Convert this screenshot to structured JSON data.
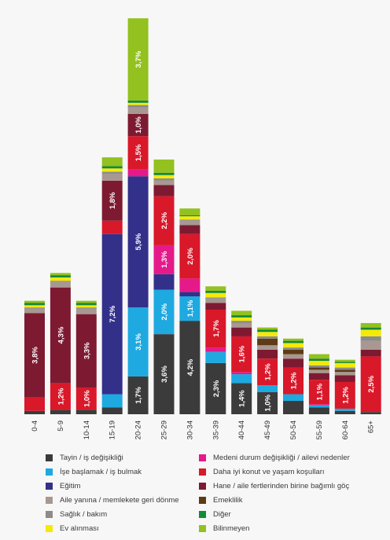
{
  "chart_data": {
    "type": "bar",
    "stacked": true,
    "orientation": "vertical",
    "title": "",
    "xlabel": "",
    "ylabel": "",
    "grid": false,
    "legend_position": "bottom",
    "categories": [
      "0-4",
      "5-9",
      "10-14",
      "15-19",
      "20-24",
      "25-29",
      "30-34",
      "35-39",
      "40-44",
      "45-49",
      "50-54",
      "55-59",
      "60-64",
      "65+"
    ],
    "series": [
      {
        "name": "Tayin / iş değişikliği",
        "color": "#3b3b3b",
        "values": [
          0.15,
          0.2,
          0.2,
          0.3,
          1.7,
          3.6,
          4.2,
          2.3,
          1.4,
          1.0,
          0.6,
          0.3,
          0.15,
          0.1
        ]
      },
      {
        "name": "İşe başlamak / iş bulmak",
        "color": "#1ea9e1",
        "values": [
          0,
          0,
          0,
          0.6,
          3.1,
          2.0,
          1.1,
          0.5,
          0.4,
          0.3,
          0.3,
          0.1,
          0.1,
          0
        ]
      },
      {
        "name": "Eğitim",
        "color": "#33308a",
        "values": [
          0,
          0,
          0,
          7.2,
          5.9,
          0.7,
          0.2,
          0,
          0,
          0,
          0,
          0,
          0,
          0
        ]
      },
      {
        "name": "Medeni durum değişikliği / ailevi nedenler",
        "color": "#e5198a",
        "values": [
          0,
          0,
          0,
          0,
          0.3,
          1.3,
          0.6,
          0.2,
          0.1,
          0,
          0,
          0.05,
          0,
          0
        ]
      },
      {
        "name": "Daha iyi konut ve yaşam koşulları",
        "color": "#d9182a",
        "values": [
          0.6,
          1.2,
          1.0,
          0.6,
          1.5,
          2.2,
          2.0,
          1.7,
          1.6,
          1.2,
          1.2,
          1.1,
          1.2,
          2.5
        ]
      },
      {
        "name": "Hane / aile fertlerinden birine bağımlı göç",
        "color": "#7d1a31",
        "values": [
          3.8,
          4.3,
          3.3,
          1.8,
          1.0,
          0.5,
          0.4,
          0.3,
          0.4,
          0.4,
          0.4,
          0.3,
          0.3,
          0.3
        ]
      },
      {
        "name": "Aile yanına / memlekete geri dönme",
        "color": "#a89891",
        "values": [
          0.2,
          0.25,
          0.25,
          0.3,
          0.3,
          0.2,
          0.2,
          0.2,
          0.2,
          0.2,
          0.2,
          0.15,
          0.15,
          0.4
        ]
      },
      {
        "name": "Emeklilik",
        "color": "#5e3b14",
        "values": [
          0,
          0,
          0,
          0,
          0,
          0,
          0,
          0,
          0,
          0.3,
          0.2,
          0.1,
          0.1,
          0
        ]
      },
      {
        "name": "Sağlık / bakım",
        "color": "#8b8b8b",
        "values": [
          0.05,
          0.05,
          0.05,
          0.1,
          0.1,
          0.1,
          0.05,
          0.05,
          0.1,
          0.1,
          0.1,
          0.1,
          0.1,
          0.2
        ]
      },
      {
        "name": "Ev alınması",
        "color": "#f5e90a",
        "values": [
          0.1,
          0.15,
          0.1,
          0.15,
          0.1,
          0.15,
          0.15,
          0.2,
          0.15,
          0.2,
          0.2,
          0.2,
          0.2,
          0.3
        ]
      },
      {
        "name": "Diğer",
        "color": "#138a38",
        "values": [
          0.1,
          0.1,
          0.1,
          0.1,
          0.1,
          0.1,
          0.05,
          0.1,
          0.1,
          0.1,
          0.1,
          0.1,
          0.05,
          0.1
        ]
      },
      {
        "name": "Bilinmeyen",
        "color": "#93c11f",
        "values": [
          0.1,
          0.1,
          0.1,
          0.4,
          3.7,
          0.6,
          0.3,
          0.2,
          0.2,
          0.1,
          0.1,
          0.2,
          0.1,
          0.2
        ]
      }
    ],
    "data_labels": [
      {
        "category": "0-4",
        "series": "Hane / aile fertlerinden birine bağımlı göç",
        "text": "3,8%"
      },
      {
        "category": "5-9",
        "series": "Daha iyi konut ve yaşam koşulları",
        "text": "1,2%"
      },
      {
        "category": "5-9",
        "series": "Hane / aile fertlerinden birine bağımlı göç",
        "text": "4,3%"
      },
      {
        "category": "10-14",
        "series": "Daha iyi konut ve yaşam koşulları",
        "text": "1,0%"
      },
      {
        "category": "10-14",
        "series": "Hane / aile fertlerinden birine bağımlı göç",
        "text": "3,3%"
      },
      {
        "category": "15-19",
        "series": "Eğitim",
        "text": "7,2%"
      },
      {
        "category": "15-19",
        "series": "Hane / aile fertlerinden birine bağımlı göç",
        "text": "1,8%"
      },
      {
        "category": "20-24",
        "series": "Tayin / iş değişikliği",
        "text": "1,7%"
      },
      {
        "category": "20-24",
        "series": "İşe başlamak / iş bulmak",
        "text": "3,1%"
      },
      {
        "category": "20-24",
        "series": "Eğitim",
        "text": "5,9%"
      },
      {
        "category": "20-24",
        "series": "Daha iyi konut ve yaşam koşulları",
        "text": "1,5%"
      },
      {
        "category": "20-24",
        "series": "Hane / aile fertlerinden birine bağımlı göç",
        "text": "1,0%"
      },
      {
        "category": "20-24",
        "series": "Bilinmeyen",
        "text": "3,7%"
      },
      {
        "category": "25-29",
        "series": "Tayin / iş değişikliği",
        "text": "3,6%"
      },
      {
        "category": "25-29",
        "series": "İşe başlamak / iş bulmak",
        "text": "2,0%"
      },
      {
        "category": "25-29",
        "series": "Medeni durum değişikliği / ailevi nedenler",
        "text": "1,3%"
      },
      {
        "category": "25-29",
        "series": "Daha iyi konut ve yaşam koşulları",
        "text": "2,2%"
      },
      {
        "category": "30-34",
        "series": "Tayin / iş değişikliği",
        "text": "4,2%"
      },
      {
        "category": "30-34",
        "series": "İşe başlamak / iş bulmak",
        "text": "1,1%"
      },
      {
        "category": "30-34",
        "series": "Daha iyi konut ve yaşam koşulları",
        "text": "2,0%"
      },
      {
        "category": "35-39",
        "series": "Tayin / iş değişikliği",
        "text": "2,3%"
      },
      {
        "category": "35-39",
        "series": "Daha iyi konut ve yaşam koşulları",
        "text": "1,7%"
      },
      {
        "category": "40-44",
        "series": "Tayin / iş değişikliği",
        "text": "1,4%"
      },
      {
        "category": "40-44",
        "series": "Daha iyi konut ve yaşam koşulları",
        "text": "1,6%"
      },
      {
        "category": "45-49",
        "series": "Tayin / iş değişikliği",
        "text": "1,0%"
      },
      {
        "category": "45-49",
        "series": "Daha iyi konut ve yaşam koşulları",
        "text": "1,2%"
      },
      {
        "category": "50-54",
        "series": "Daha iyi konut ve yaşam koşulları",
        "text": "1,2%"
      },
      {
        "category": "55-59",
        "series": "Daha iyi konut ve yaşam koşulları",
        "text": "1,1%"
      },
      {
        "category": "60-64",
        "series": "Daha iyi konut ve yaşam koşulları",
        "text": "1,2%"
      },
      {
        "category": "65+",
        "series": "Daha iyi konut ve yaşam koşulları",
        "text": "2,5%"
      }
    ],
    "legend_columns": [
      [
        "Tayin / iş değişikliği",
        "İşe başlamak / iş bulmak",
        "Eğitim",
        "Aile yanına / memlekete geri dönme",
        "Sağlık / bakım",
        "Ev alınması"
      ],
      [
        "Medeni durum değişikliği / ailevi nedenler",
        "Daha iyi konut ve yaşam koşulları",
        "Hane / aile fertlerinden birine bağımlı göç",
        "Emeklilik",
        "Diğer",
        "Bilinmeyen"
      ]
    ]
  }
}
